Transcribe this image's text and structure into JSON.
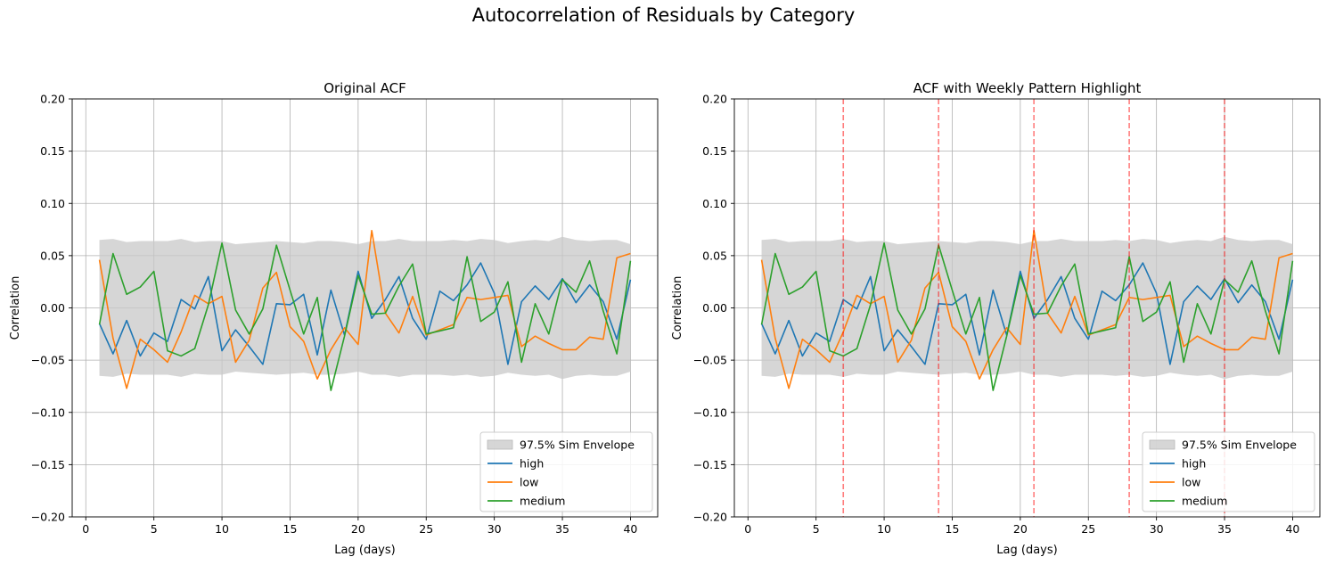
{
  "suptitle": "Autocorrelation of Residuals by Category",
  "colors": {
    "high": "#1f77b4",
    "low": "#ff7f0e",
    "medium": "#2ca02c",
    "envelope": "#c8c8c8",
    "weekly_line": "#ff0000",
    "grid": "#b0b0b0"
  },
  "chart_data": [
    {
      "type": "line",
      "title": "Original ACF",
      "xlabel": "Lag (days)",
      "ylabel": "Correlation",
      "xlim": [
        -1,
        42
      ],
      "ylim": [
        -0.2,
        0.2
      ],
      "xticks": [
        0,
        5,
        10,
        15,
        20,
        25,
        30,
        35,
        40
      ],
      "yticks": [
        -0.2,
        -0.15,
        -0.1,
        -0.05,
        0.0,
        0.05,
        0.1,
        0.15,
        0.2
      ],
      "grid": true,
      "legend_position": "lower-right",
      "highlight_lags": []
    },
    {
      "type": "line",
      "title": "ACF with Weekly Pattern Highlight",
      "xlabel": "Lag (days)",
      "ylabel": "Correlation",
      "xlim": [
        -1,
        42
      ],
      "ylim": [
        -0.2,
        0.2
      ],
      "xticks": [
        0,
        5,
        10,
        15,
        20,
        25,
        30,
        35,
        40
      ],
      "yticks": [
        -0.2,
        -0.15,
        -0.1,
        -0.05,
        0.0,
        0.05,
        0.1,
        0.15,
        0.2
      ],
      "grid": true,
      "legend_position": "lower-right",
      "highlight_lags": [
        7,
        14,
        21,
        28,
        35
      ]
    }
  ],
  "shared_series": {
    "x": [
      1,
      2,
      3,
      4,
      5,
      6,
      7,
      8,
      9,
      10,
      11,
      12,
      13,
      14,
      15,
      16,
      17,
      18,
      19,
      20,
      21,
      22,
      23,
      24,
      25,
      26,
      27,
      28,
      29,
      30,
      31,
      32,
      33,
      34,
      35,
      36,
      37,
      38,
      39,
      40
    ],
    "envelope": {
      "name": "97.5% Sim Envelope",
      "upper": [
        0.065,
        0.066,
        0.063,
        0.064,
        0.064,
        0.064,
        0.066,
        0.063,
        0.064,
        0.064,
        0.061,
        0.062,
        0.063,
        0.064,
        0.063,
        0.062,
        0.064,
        0.064,
        0.063,
        0.061,
        0.064,
        0.064,
        0.066,
        0.064,
        0.064,
        0.064,
        0.065,
        0.064,
        0.066,
        0.065,
        0.062,
        0.064,
        0.065,
        0.064,
        0.068,
        0.065,
        0.064,
        0.065,
        0.065,
        0.061
      ],
      "lower": [
        -0.065,
        -0.066,
        -0.063,
        -0.064,
        -0.064,
        -0.064,
        -0.066,
        -0.063,
        -0.064,
        -0.064,
        -0.061,
        -0.062,
        -0.063,
        -0.064,
        -0.063,
        -0.062,
        -0.064,
        -0.064,
        -0.063,
        -0.061,
        -0.064,
        -0.064,
        -0.066,
        -0.064,
        -0.064,
        -0.064,
        -0.065,
        -0.064,
        -0.066,
        -0.065,
        -0.062,
        -0.064,
        -0.065,
        -0.064,
        -0.068,
        -0.065,
        -0.064,
        -0.065,
        -0.065,
        -0.061
      ]
    },
    "series": [
      {
        "name": "high",
        "values": [
          -0.015,
          -0.044,
          -0.012,
          -0.046,
          -0.024,
          -0.032,
          0.008,
          -0.001,
          0.03,
          -0.041,
          -0.021,
          -0.037,
          -0.054,
          0.004,
          0.003,
          0.013,
          -0.045,
          0.017,
          -0.026,
          0.035,
          -0.01,
          0.008,
          0.03,
          -0.01,
          -0.03,
          0.016,
          0.007,
          0.022,
          0.043,
          0.014,
          -0.054,
          0.006,
          0.021,
          0.008,
          0.028,
          0.005,
          0.022,
          0.006,
          -0.03,
          0.027
        ]
      },
      {
        "name": "low",
        "values": [
          0.046,
          -0.029,
          -0.077,
          -0.03,
          -0.04,
          -0.052,
          -0.023,
          0.012,
          0.004,
          0.011,
          -0.052,
          -0.031,
          0.019,
          0.034,
          -0.018,
          -0.032,
          -0.068,
          -0.04,
          -0.019,
          -0.035,
          0.074,
          -0.005,
          -0.024,
          0.011,
          -0.026,
          -0.021,
          -0.016,
          0.01,
          0.008,
          0.01,
          0.012,
          -0.037,
          -0.027,
          -0.034,
          -0.04,
          -0.04,
          -0.028,
          -0.03,
          0.048,
          0.052
        ]
      },
      {
        "name": "medium",
        "values": [
          -0.016,
          0.052,
          0.013,
          0.02,
          0.035,
          -0.041,
          -0.046,
          -0.039,
          0.003,
          0.062,
          -0.002,
          -0.025,
          -0.001,
          0.06,
          0.017,
          -0.025,
          0.01,
          -0.079,
          -0.027,
          0.031,
          -0.006,
          -0.005,
          0.021,
          0.042,
          -0.025,
          -0.022,
          -0.019,
          0.049,
          -0.013,
          -0.004,
          0.025,
          -0.052,
          0.004,
          -0.025,
          0.027,
          0.015,
          0.045,
          -0.003,
          -0.044,
          0.045
        ]
      }
    ]
  }
}
